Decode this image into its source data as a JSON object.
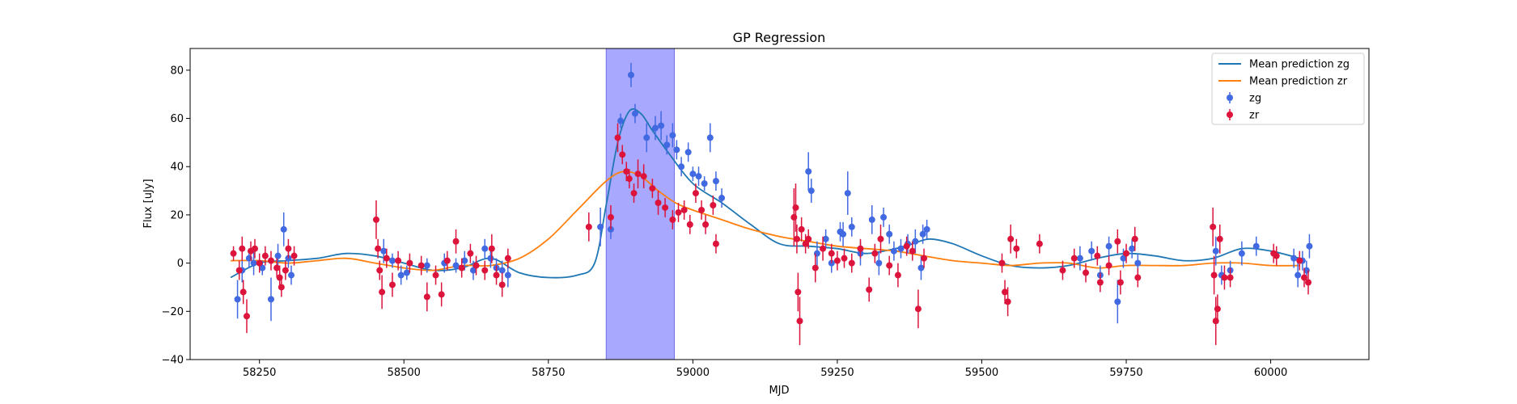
{
  "chart_data": {
    "type": "scatter",
    "title": "GP Regression",
    "xlabel": "MJD",
    "ylabel": "Flux [uJy]",
    "xlim": [
      58130,
      60170
    ],
    "ylim": [
      -40,
      89
    ],
    "xticks": [
      58250,
      58500,
      58750,
      59000,
      59250,
      59500,
      59750,
      60000
    ],
    "yticks": [
      -40,
      -20,
      0,
      20,
      40,
      60,
      80
    ],
    "highlight_span": {
      "x": [
        58850,
        58968
      ],
      "color": "#a8a8ff"
    },
    "legend": {
      "placement": "upper right"
    },
    "lines": [
      {
        "name": "Mean prediction zg",
        "color": "#1f77b4",
        "x": [
          58200,
          58250,
          58300,
          58350,
          58400,
          58450,
          58500,
          58550,
          58600,
          58650,
          58700,
          58750,
          58800,
          58830,
          58850,
          58870,
          58890,
          58910,
          58930,
          58960,
          59000,
          59050,
          59100,
          59150,
          59200,
          59250,
          59300,
          59350,
          59380,
          59410,
          59450,
          59500,
          59550,
          59600,
          59650,
          59700,
          59750,
          59800,
          59850,
          59900,
          59950,
          60000,
          60050
        ],
        "y": [
          -6,
          0,
          1,
          2,
          4,
          3,
          0,
          -3,
          -2,
          2,
          -4,
          -6,
          -5,
          0,
          24,
          50,
          63,
          62,
          55,
          45,
          33,
          25,
          16,
          8,
          7,
          6,
          4,
          6,
          8,
          10,
          8,
          3,
          -1,
          -2,
          -1,
          2,
          4,
          3,
          1,
          2,
          6,
          5,
          2
        ]
      },
      {
        "name": "Mean prediction zr",
        "color": "#ff7f0e",
        "x": [
          58200,
          58250,
          58300,
          58350,
          58400,
          58450,
          58500,
          58550,
          58600,
          58650,
          58700,
          58750,
          58800,
          58850,
          58880,
          58910,
          58940,
          58970,
          59000,
          59050,
          59100,
          59150,
          59200,
          59250,
          59300,
          59350,
          59400,
          59450,
          59500,
          59550,
          59600,
          59650,
          59700,
          59750,
          59800,
          59850,
          59900,
          59950,
          60000,
          60050
        ],
        "y": [
          1,
          1,
          0,
          1,
          2,
          0,
          -2,
          -3,
          -1,
          -1,
          2,
          10,
          22,
          34,
          38,
          36,
          30,
          25,
          22,
          18,
          14,
          11,
          9,
          7,
          6,
          5,
          3,
          1,
          0,
          -1,
          0,
          0,
          -2,
          -1,
          -1,
          -1,
          0,
          0,
          -1,
          -1
        ]
      }
    ],
    "series": [
      {
        "name": "zg",
        "color": "#4169e1",
        "points": [
          [
            58212,
            -15,
            8
          ],
          [
            58220,
            -3,
            5
          ],
          [
            58232,
            2,
            4
          ],
          [
            58240,
            0,
            5
          ],
          [
            58255,
            -2,
            3
          ],
          [
            58270,
            -15,
            9
          ],
          [
            58282,
            3,
            5
          ],
          [
            58292,
            14,
            7
          ],
          [
            58300,
            2,
            4
          ],
          [
            58305,
            -5,
            4
          ],
          [
            58465,
            5,
            5
          ],
          [
            58480,
            1,
            3
          ],
          [
            58495,
            -5,
            4
          ],
          [
            58505,
            -4,
            3
          ],
          [
            58540,
            -1,
            3
          ],
          [
            58570,
            0,
            4
          ],
          [
            58590,
            -1,
            3
          ],
          [
            58605,
            1,
            4
          ],
          [
            58620,
            -3,
            4
          ],
          [
            58640,
            6,
            4
          ],
          [
            58650,
            2,
            4
          ],
          [
            58660,
            -2,
            4
          ],
          [
            58670,
            -3,
            4
          ],
          [
            58680,
            -5,
            5
          ],
          [
            58840,
            15,
            8
          ],
          [
            58858,
            14,
            4
          ],
          [
            58875,
            59,
            3
          ],
          [
            58893,
            78,
            5
          ],
          [
            58900,
            62,
            4
          ],
          [
            58920,
            52,
            6
          ],
          [
            58935,
            56,
            5
          ],
          [
            58945,
            57,
            6
          ],
          [
            58955,
            49,
            4
          ],
          [
            58965,
            53,
            5
          ],
          [
            58972,
            47,
            4
          ],
          [
            58980,
            40,
            4
          ],
          [
            58992,
            46,
            4
          ],
          [
            59000,
            37,
            3
          ],
          [
            59010,
            36,
            4
          ],
          [
            59020,
            33,
            3
          ],
          [
            59030,
            52,
            6
          ],
          [
            59040,
            34,
            4
          ],
          [
            59050,
            27,
            4
          ],
          [
            59200,
            38,
            8
          ],
          [
            59205,
            30,
            5
          ],
          [
            59215,
            4,
            5
          ],
          [
            59230,
            10,
            4
          ],
          [
            59240,
            0,
            4
          ],
          [
            59255,
            13,
            4
          ],
          [
            59260,
            12,
            5
          ],
          [
            59268,
            29,
            9
          ],
          [
            59275,
            15,
            4
          ],
          [
            59290,
            4,
            5
          ],
          [
            59310,
            18,
            6
          ],
          [
            59322,
            0,
            5
          ],
          [
            59330,
            19,
            4
          ],
          [
            59340,
            12,
            4
          ],
          [
            59348,
            5,
            4
          ],
          [
            59360,
            6,
            4
          ],
          [
            59372,
            8,
            4
          ],
          [
            59385,
            9,
            5
          ],
          [
            59395,
            -2,
            5
          ],
          [
            59398,
            12,
            4
          ],
          [
            59405,
            14,
            4
          ],
          [
            59670,
            2,
            5
          ],
          [
            59690,
            5,
            4
          ],
          [
            59705,
            -5,
            4
          ],
          [
            59720,
            7,
            4
          ],
          [
            59735,
            -16,
            9
          ],
          [
            59745,
            2,
            4
          ],
          [
            59760,
            6,
            4
          ],
          [
            59770,
            0,
            4
          ],
          [
            59905,
            5,
            6
          ],
          [
            59915,
            -5,
            4
          ],
          [
            59930,
            -3,
            4
          ],
          [
            59950,
            4,
            5
          ],
          [
            59975,
            7,
            4
          ],
          [
            60040,
            2,
            4
          ],
          [
            60047,
            -5,
            5
          ],
          [
            60055,
            1,
            4
          ],
          [
            60062,
            -3,
            4
          ],
          [
            60067,
            7,
            5
          ]
        ]
      },
      {
        "name": "zr",
        "color": "#dc143c",
        "points": [
          [
            58205,
            4,
            3
          ],
          [
            58215,
            -3,
            4
          ],
          [
            58220,
            6,
            5
          ],
          [
            58222,
            -12,
            5
          ],
          [
            58228,
            -22,
            7
          ],
          [
            58235,
            5,
            4
          ],
          [
            58242,
            6,
            4
          ],
          [
            58250,
            0,
            4
          ],
          [
            58260,
            3,
            4
          ],
          [
            58270,
            1,
            4
          ],
          [
            58280,
            -2,
            4
          ],
          [
            58285,
            -6,
            5
          ],
          [
            58288,
            -10,
            4
          ],
          [
            58295,
            -3,
            4
          ],
          [
            58300,
            6,
            4
          ],
          [
            58310,
            3,
            4
          ],
          [
            58452,
            18,
            8
          ],
          [
            58455,
            6,
            4
          ],
          [
            58458,
            -3,
            4
          ],
          [
            58462,
            -12,
            7
          ],
          [
            58470,
            2,
            4
          ],
          [
            58480,
            -9,
            5
          ],
          [
            58490,
            1,
            4
          ],
          [
            58510,
            0,
            4
          ],
          [
            58530,
            -1,
            4
          ],
          [
            58540,
            -14,
            6
          ],
          [
            58555,
            -5,
            4
          ],
          [
            58565,
            -13,
            5
          ],
          [
            58575,
            1,
            4
          ],
          [
            58590,
            9,
            5
          ],
          [
            58600,
            -2,
            4
          ],
          [
            58615,
            4,
            4
          ],
          [
            58625,
            -1,
            4
          ],
          [
            58640,
            -3,
            4
          ],
          [
            58652,
            6,
            6
          ],
          [
            58660,
            -5,
            4
          ],
          [
            58670,
            -9,
            5
          ],
          [
            58680,
            2,
            4
          ],
          [
            58820,
            15,
            6
          ],
          [
            58858,
            19,
            5
          ],
          [
            58870,
            52,
            6
          ],
          [
            58878,
            45,
            4
          ],
          [
            58885,
            38,
            4
          ],
          [
            58890,
            35,
            4
          ],
          [
            58898,
            29,
            4
          ],
          [
            58905,
            37,
            6
          ],
          [
            58915,
            36,
            5
          ],
          [
            58930,
            31,
            4
          ],
          [
            58940,
            25,
            5
          ],
          [
            58952,
            23,
            4
          ],
          [
            58965,
            18,
            4
          ],
          [
            58975,
            21,
            4
          ],
          [
            58985,
            22,
            4
          ],
          [
            58995,
            16,
            4
          ],
          [
            59005,
            29,
            4
          ],
          [
            59015,
            22,
            4
          ],
          [
            59022,
            16,
            4
          ],
          [
            59035,
            24,
            4
          ],
          [
            59040,
            8,
            4
          ],
          [
            59175,
            19,
            12
          ],
          [
            59178,
            23,
            10
          ],
          [
            59180,
            10,
            6
          ],
          [
            59182,
            -12,
            8
          ],
          [
            59185,
            -24,
            10
          ],
          [
            59188,
            14,
            5
          ],
          [
            59195,
            8,
            4
          ],
          [
            59200,
            10,
            4
          ],
          [
            59212,
            -2,
            6
          ],
          [
            59225,
            6,
            5
          ],
          [
            59240,
            4,
            4
          ],
          [
            59250,
            1,
            4
          ],
          [
            59262,
            2,
            4
          ],
          [
            59275,
            0,
            4
          ],
          [
            59290,
            6,
            4
          ],
          [
            59305,
            -11,
            5
          ],
          [
            59315,
            4,
            4
          ],
          [
            59325,
            10,
            6
          ],
          [
            59340,
            -1,
            4
          ],
          [
            59355,
            -5,
            5
          ],
          [
            59370,
            7,
            4
          ],
          [
            59380,
            5,
            4
          ],
          [
            59390,
            -19,
            8
          ],
          [
            59400,
            2,
            4
          ],
          [
            59535,
            0,
            4
          ],
          [
            59540,
            -12,
            5
          ],
          [
            59545,
            -16,
            6
          ],
          [
            59550,
            10,
            6
          ],
          [
            59560,
            6,
            4
          ],
          [
            59600,
            8,
            4
          ],
          [
            59640,
            -3,
            4
          ],
          [
            59660,
            2,
            4
          ],
          [
            59680,
            -4,
            4
          ],
          [
            59700,
            3,
            4
          ],
          [
            59705,
            -8,
            4
          ],
          [
            59720,
            -1,
            4
          ],
          [
            59735,
            9,
            5
          ],
          [
            59740,
            -8,
            5
          ],
          [
            59750,
            4,
            4
          ],
          [
            59765,
            10,
            5
          ],
          [
            59770,
            -6,
            4
          ],
          [
            59900,
            15,
            8
          ],
          [
            59902,
            -5,
            8
          ],
          [
            59905,
            -24,
            10
          ],
          [
            59908,
            -19,
            6
          ],
          [
            59912,
            10,
            6
          ],
          [
            59920,
            -6,
            5
          ],
          [
            59930,
            -6,
            4
          ],
          [
            60005,
            4,
            4
          ],
          [
            60010,
            3,
            4
          ],
          [
            60050,
            1,
            4
          ],
          [
            60058,
            -6,
            4
          ],
          [
            60065,
            -8,
            5
          ]
        ]
      }
    ]
  }
}
